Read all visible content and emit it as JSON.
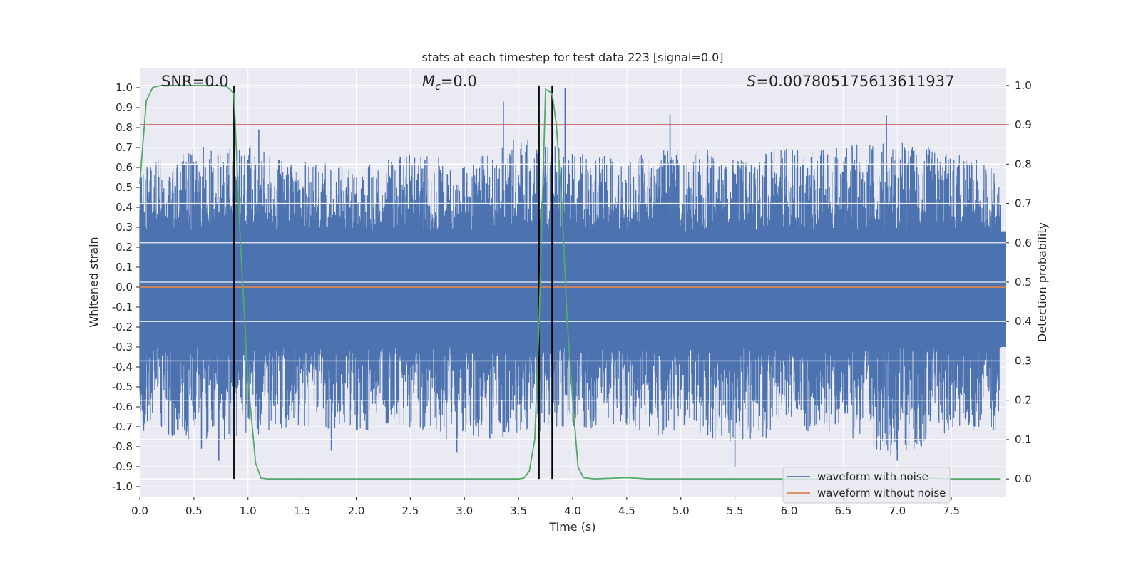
{
  "chart_data": {
    "type": "line",
    "title": "stats at each timestep for test data 223 [signal=0.0]",
    "xlabel": "Time (s)",
    "ylabel": "Whitened strain",
    "y2label": "Detection probability",
    "xlim": [
      0.0,
      8.0
    ],
    "ylim": [
      -1.05,
      1.1
    ],
    "y2lim": [
      -0.045,
      1.045
    ],
    "x_ticks": [
      "0.0",
      "0.5",
      "1.0",
      "1.5",
      "2.0",
      "2.5",
      "3.0",
      "3.5",
      "4.0",
      "4.5",
      "5.0",
      "5.5",
      "6.0",
      "6.5",
      "7.0",
      "7.5"
    ],
    "y_ticks": [
      "1.0",
      "0.9",
      "0.8",
      "0.7",
      "0.6",
      "0.5",
      "0.4",
      "0.3",
      "0.2",
      "0.1",
      "0.0",
      "-0.1",
      "-0.2",
      "-0.3",
      "-0.4",
      "-0.5",
      "-0.6",
      "-0.7",
      "-0.8",
      "-0.9",
      "-1.0"
    ],
    "y2_ticks": [
      "1.0",
      "0.9",
      "0.8",
      "0.7",
      "0.6",
      "0.5",
      "0.4",
      "0.3",
      "0.2",
      "0.1",
      "0.0"
    ],
    "grid": true,
    "legend_position": "lower-right",
    "annotations": {
      "snr": "SNR=0.0",
      "mc": "M_c=0.0",
      "mc_symbol": "M",
      "mc_sub": "c",
      "mc_value": "=0.0",
      "s_symbol": "S",
      "s_value": "=0.007805175613611937"
    },
    "threshold": {
      "value": 0.9,
      "color": "#c44e52"
    },
    "vertical_markers": [
      0.87,
      3.69,
      3.81
    ],
    "noise_envelope": {
      "x": [
        0.0,
        0.5,
        1.0,
        1.5,
        2.0,
        2.5,
        3.0,
        3.5,
        4.0,
        4.5,
        5.0,
        5.5,
        6.0,
        6.5,
        7.0,
        7.5,
        7.95
      ],
      "upper": [
        0.62,
        0.7,
        0.72,
        0.64,
        0.6,
        0.68,
        0.62,
        0.75,
        0.7,
        0.64,
        0.72,
        0.66,
        0.7,
        0.72,
        0.74,
        0.68,
        0.6
      ],
      "lower": [
        -0.72,
        -0.78,
        -0.76,
        -0.7,
        -0.72,
        -0.72,
        -0.8,
        -0.74,
        -0.7,
        -0.74,
        -0.75,
        -0.82,
        -0.72,
        -0.74,
        -0.86,
        -0.74,
        -0.72
      ],
      "spikes": [
        {
          "x": 3.36,
          "y": 0.93
        },
        {
          "x": 3.93,
          "y": 1.0
        },
        {
          "x": 4.9,
          "y": 0.86
        },
        {
          "x": 6.9,
          "y": 0.86
        },
        {
          "x": 1.1,
          "y": 0.79
        },
        {
          "x": 0.57,
          "y": -0.81
        },
        {
          "x": 0.73,
          "y": -0.87
        },
        {
          "x": 2.93,
          "y": -0.83
        },
        {
          "x": 5.5,
          "y": -0.9
        },
        {
          "x": 7.0,
          "y": -0.87
        },
        {
          "x": 1.77,
          "y": -0.82
        }
      ]
    },
    "series": [
      {
        "name": "waveform with noise",
        "color": "#4c72b0",
        "kind": "noise"
      },
      {
        "name": "waveform without noise",
        "color": "#dd8452",
        "kind": "constant",
        "y": 0.0
      },
      {
        "name": "",
        "color": "#55a868",
        "axis": "y2",
        "x": [
          0.0,
          0.06,
          0.12,
          0.2,
          0.3,
          0.5,
          0.7,
          0.8,
          0.87,
          0.93,
          1.0,
          1.07,
          1.12,
          1.18,
          1.3,
          2.0,
          3.0,
          3.5,
          3.55,
          3.6,
          3.65,
          3.69,
          3.72,
          3.75,
          3.78,
          3.81,
          3.85,
          3.9,
          3.95,
          4.0,
          4.05,
          4.1,
          4.2,
          4.5,
          4.7,
          5.0,
          6.0,
          7.0,
          7.3,
          7.5,
          7.95
        ],
        "y": [
          0.75,
          0.96,
          0.995,
          1.0,
          1.0,
          1.0,
          1.0,
          0.998,
          0.98,
          0.6,
          0.25,
          0.04,
          0.002,
          0.0,
          0.0,
          0.0,
          0.0,
          0.0,
          0.002,
          0.02,
          0.1,
          0.4,
          0.7,
          0.99,
          0.985,
          0.98,
          0.9,
          0.7,
          0.4,
          0.2,
          0.03,
          0.003,
          0.0,
          0.003,
          0.0,
          0.0,
          0.0,
          0.0,
          0.002,
          0.0,
          0.0
        ]
      }
    ]
  }
}
